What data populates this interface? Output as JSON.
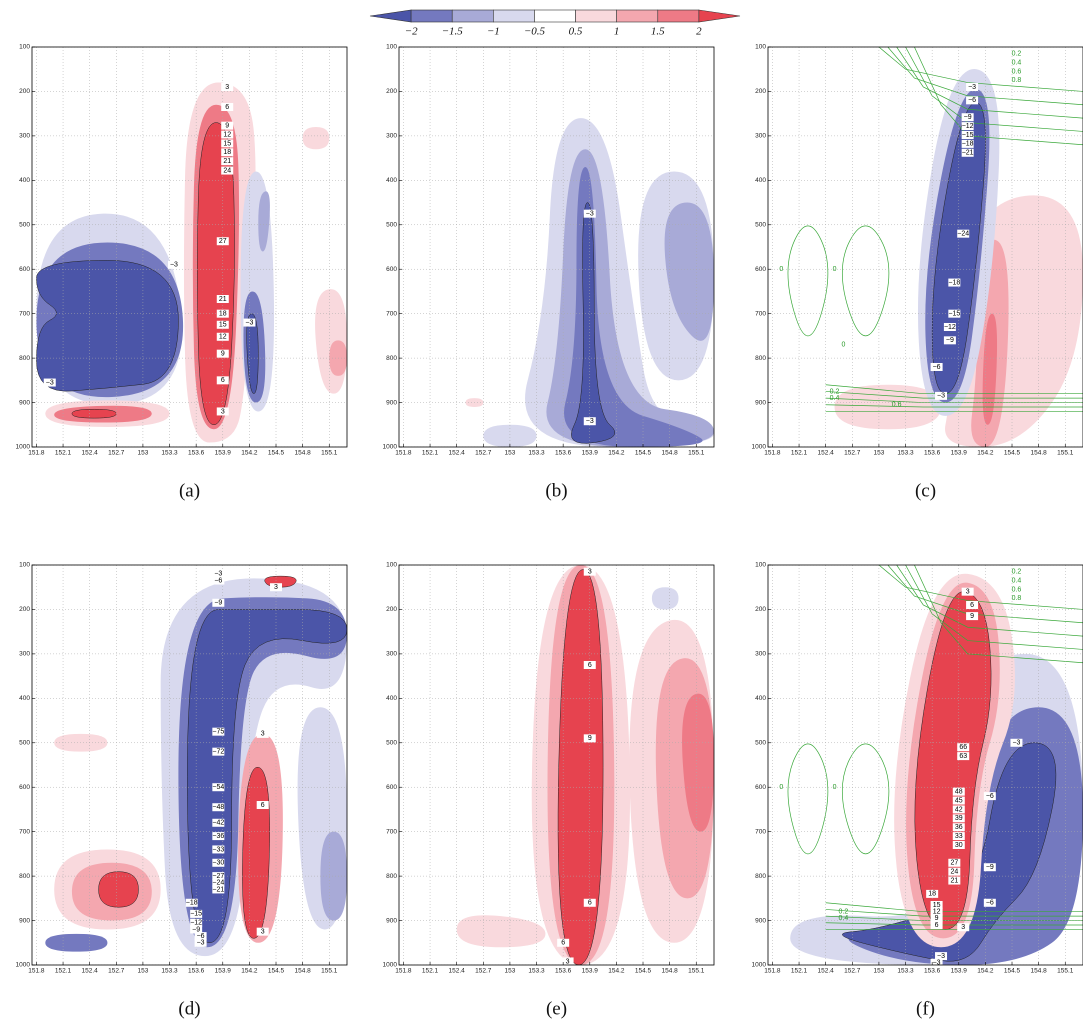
{
  "chart_data": {
    "type": "contour",
    "colorbar": {
      "levels": [
        {
          "value": -2,
          "label": "−2"
        },
        {
          "value": -1.5,
          "label": "−1.5"
        },
        {
          "value": -1,
          "label": "−1"
        },
        {
          "value": -0.5,
          "label": "−0.5"
        },
        0.5,
        1,
        1.5,
        2
      ],
      "colors": [
        "#4b55a8",
        "#7479bf",
        "#a8aad7",
        "#d8d9ee",
        "#ffffff",
        "#f9d9dd",
        "#f4a7af",
        "#ee7a86",
        "#e6434f"
      ]
    },
    "xlim": [
      151.75,
      155.3
    ],
    "xticks": [
      151.8,
      152.1,
      152.4,
      152.7,
      153,
      153.3,
      153.6,
      153.9,
      154.2,
      154.5,
      154.8,
      155.1
    ],
    "ylim": [
      1000,
      100
    ],
    "yticks": [
      100,
      200,
      300,
      400,
      500,
      600,
      700,
      800,
      900,
      1000
    ],
    "grid": true,
    "panels": [
      {
        "label": "(a)",
        "contour_labels": [
          "3",
          "6",
          "9",
          "12",
          "15",
          "18",
          "21",
          "24",
          "27",
          "21",
          "18",
          "15",
          "12",
          "9",
          "6",
          "3",
          "−3",
          "−3",
          "−3"
        ],
        "green_contour_labels": []
      },
      {
        "label": "(b)",
        "contour_labels": [
          "−3",
          "−3"
        ],
        "green_contour_labels": []
      },
      {
        "label": "(c)",
        "contour_labels": [
          "−3",
          "−6",
          "−9",
          "−12",
          "−15",
          "−18",
          "−21",
          "−24",
          "−18",
          "−15",
          "−12",
          "−9",
          "−6",
          "−3"
        ],
        "green_contour_labels": [
          "0.2",
          "0.4",
          "0.6",
          "0.8",
          "0",
          "0",
          "0",
          "0.2",
          "0.4",
          "0.6"
        ]
      },
      {
        "label": "(d)",
        "contour_labels": [
          "−3",
          "−6",
          "3",
          "−9",
          "−75",
          "−72",
          "−54",
          "−48",
          "−42",
          "−36",
          "−33",
          "−30",
          "−27",
          "−24",
          "−21",
          "−18",
          "−15",
          "−12",
          "−9",
          "−6",
          "−3",
          "3",
          "6",
          "3"
        ],
        "green_contour_labels": []
      },
      {
        "label": "(e)",
        "contour_labels": [
          "3",
          "6",
          "9",
          "6",
          "6",
          "3"
        ],
        "green_contour_labels": []
      },
      {
        "label": "(f)",
        "contour_labels": [
          "3",
          "6",
          "9",
          "66",
          "63",
          "48",
          "45",
          "42",
          "39",
          "36",
          "33",
          "30",
          "27",
          "24",
          "21",
          "18",
          "15",
          "12",
          "9",
          "6",
          "3",
          "−3",
          "−3",
          "−6",
          "−9",
          "−6",
          "−3"
        ],
        "green_contour_labels": [
          "0.2",
          "0.4",
          "0.6",
          "0.8",
          "0",
          "0",
          "0.2",
          "0.4"
        ]
      }
    ]
  }
}
